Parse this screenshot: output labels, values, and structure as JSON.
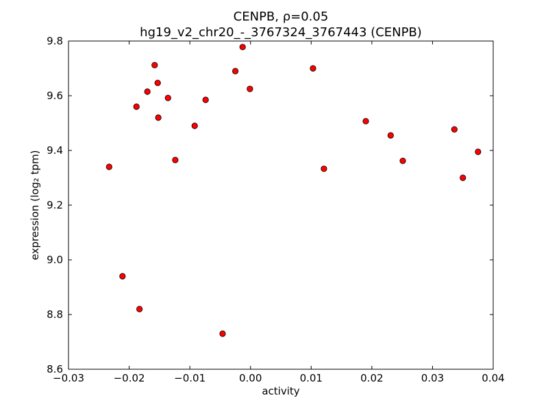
{
  "chart_data": {
    "type": "scatter",
    "title_line1": "CENPB, ρ=0.05",
    "title_line2": "hg19_v2_chr20_-_3767324_3767443 (CENPB)",
    "xlabel": "activity",
    "ylabel": "expression (log₂ tpm)",
    "xlim": [
      -0.03,
      0.04
    ],
    "ylim": [
      8.6,
      9.8
    ],
    "xticks": [
      -0.03,
      -0.02,
      -0.01,
      0.0,
      0.01,
      0.02,
      0.03,
      0.04
    ],
    "xtick_labels": [
      "−0.03",
      "−0.02",
      "−0.01",
      "0.00",
      "0.01",
      "0.02",
      "0.03",
      "0.04"
    ],
    "yticks": [
      8.6,
      8.8,
      9.0,
      9.2,
      9.4,
      9.6,
      9.8
    ],
    "ytick_labels": [
      "8.6",
      "8.8",
      "9.0",
      "9.2",
      "9.4",
      "9.6",
      "9.8"
    ],
    "grid": false,
    "marker_color": "#ff0000",
    "points": [
      {
        "x": -0.0233,
        "y": 9.34
      },
      {
        "x": -0.0211,
        "y": 8.94
      },
      {
        "x": -0.0183,
        "y": 8.82
      },
      {
        "x": -0.0188,
        "y": 9.56
      },
      {
        "x": -0.017,
        "y": 9.615
      },
      {
        "x": -0.0158,
        "y": 9.712
      },
      {
        "x": -0.0153,
        "y": 9.647
      },
      {
        "x": -0.0152,
        "y": 9.52
      },
      {
        "x": -0.0136,
        "y": 9.592
      },
      {
        "x": -0.0124,
        "y": 9.365
      },
      {
        "x": -0.0092,
        "y": 9.49
      },
      {
        "x": -0.0074,
        "y": 9.585
      },
      {
        "x": -0.0046,
        "y": 8.73
      },
      {
        "x": -0.0025,
        "y": 9.69
      },
      {
        "x": -0.0013,
        "y": 9.778
      },
      {
        "x": -0.0001,
        "y": 9.625
      },
      {
        "x": 0.0103,
        "y": 9.7
      },
      {
        "x": 0.0121,
        "y": 9.333
      },
      {
        "x": 0.019,
        "y": 9.507
      },
      {
        "x": 0.0231,
        "y": 9.455
      },
      {
        "x": 0.0251,
        "y": 9.362
      },
      {
        "x": 0.0336,
        "y": 9.477
      },
      {
        "x": 0.035,
        "y": 9.3
      },
      {
        "x": 0.0375,
        "y": 9.395
      }
    ]
  }
}
